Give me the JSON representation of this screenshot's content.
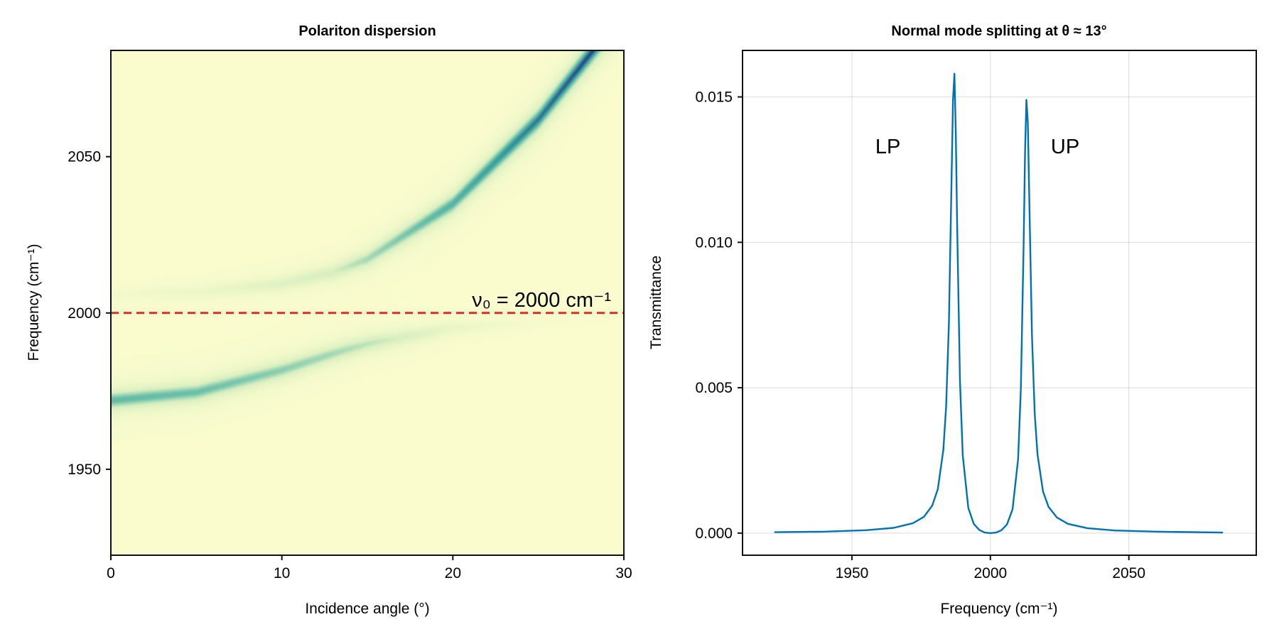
{
  "chart_data": [
    {
      "type": "heatmap",
      "title": "Polariton dispersion",
      "xlabel": "Incidence angle (°)",
      "ylabel": "Frequency (cm⁻¹)",
      "xlim": [
        0,
        30
      ],
      "ylim": [
        1922.5,
        2084
      ],
      "xticks": [
        0,
        10,
        20,
        30
      ],
      "yticks": [
        1950,
        2000,
        2050
      ],
      "grid": false,
      "colormap": [
        "#fdfdcf",
        "#d8efc0",
        "#6cc1a9",
        "#3a9f9e",
        "#2f5e8f",
        "#2a1d5a"
      ],
      "reference_line": {
        "y": 2000,
        "color": "#d0312d",
        "style": "dashed",
        "label": "ν₀ = 2000 cm⁻¹"
      },
      "branches": [
        {
          "angle": [
            0,
            5,
            10,
            13,
            15,
            20,
            25,
            30
          ],
          "frequency": [
            1972,
            1974.6,
            1981.7,
            1987,
            1990.1,
            1995.2,
            1997.3,
            1998.2
          ],
          "relative_intensity": [
            0.45,
            0.42,
            0.35,
            0.3,
            0.25,
            0.1,
            0.03,
            0.01
          ]
        },
        {
          "angle": [
            0,
            5,
            10,
            13,
            15,
            20,
            25,
            30
          ],
          "frequency": [
            2006,
            2006.7,
            2009.3,
            2013,
            2017.2,
            2034.9,
            2061.9,
            2096.4
          ],
          "relative_intensity": [
            0.05,
            0.08,
            0.15,
            0.2,
            0.3,
            0.5,
            0.75,
            1.0
          ]
        }
      ]
    },
    {
      "type": "line",
      "title": "Normal mode splitting at θ ≈ 13°",
      "xlabel": "Frequency (cm⁻¹)",
      "ylabel": "Transmittance",
      "xlim": [
        1910.5,
        2096
      ],
      "ylim": [
        -0.00076,
        0.0166
      ],
      "xticks": [
        1950,
        2000,
        2050
      ],
      "yticks": [
        0.0,
        0.005,
        0.01,
        0.015
      ],
      "ytick_labels": [
        "0.000",
        "0.005",
        "0.010",
        "0.015"
      ],
      "grid": true,
      "line_color": "#0072b2",
      "annotations": [
        {
          "text": "LP",
          "x": 1963,
          "y": 0.0133
        },
        {
          "text": "UP",
          "x": 2027,
          "y": 0.0133
        }
      ],
      "x": [
        1922,
        1940,
        1955,
        1965,
        1972,
        1976,
        1979,
        1981,
        1983,
        1984,
        1985,
        1986,
        1986.5,
        1987,
        1987.5,
        1988,
        1989,
        1990,
        1992,
        1994,
        1996,
        1998,
        2000,
        2002,
        2004,
        2006,
        2008,
        2010,
        2011,
        2012,
        2012.5,
        2013,
        2013.5,
        2014,
        2015,
        2016,
        2017,
        2019,
        2021,
        2024,
        2028,
        2035,
        2045,
        2060,
        2084
      ],
      "y": [
        3e-05,
        5e-05,
        0.0001,
        0.00018,
        0.00034,
        0.00056,
        0.00095,
        0.00151,
        0.00286,
        0.00434,
        0.00719,
        0.01235,
        0.0149,
        0.0158,
        0.0138,
        0.01049,
        0.00524,
        0.00268,
        0.00087,
        0.00032,
        0.00011,
        2e-05,
        0.0,
        2e-05,
        0.0001,
        0.0003,
        0.00082,
        0.00254,
        0.00497,
        0.00994,
        0.01308,
        0.0149,
        0.01412,
        0.01171,
        0.00682,
        0.00411,
        0.00271,
        0.00143,
        0.0009,
        0.00054,
        0.00032,
        0.00017,
        9e-05,
        5e-05,
        2e-05
      ]
    }
  ]
}
